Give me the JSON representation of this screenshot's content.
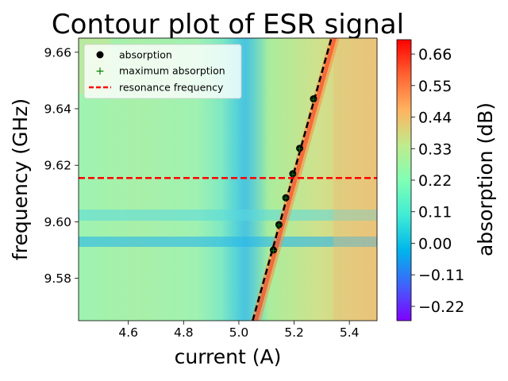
{
  "chart_data": {
    "type": "heatmap",
    "title": "Contour plot of ESR signal",
    "xlabel": "current (A)",
    "ylabel": "frequency (GHz)",
    "xlim": [
      4.42,
      5.5
    ],
    "ylim": [
      9.565,
      9.665
    ],
    "xticks": [
      "4.6",
      "4.8",
      "5.0",
      "5.2",
      "5.4"
    ],
    "yticks": [
      "9.58",
      "9.60",
      "9.62",
      "9.64",
      "9.66"
    ],
    "colorbar": {
      "label": "absorption (dB)",
      "range": [
        -0.27,
        0.71
      ],
      "ticks": [
        "−0.22",
        "−0.11",
        "0.00",
        "0.11",
        "0.22",
        "0.33",
        "0.44",
        "0.55",
        "0.66"
      ],
      "colormap": "rainbow"
    },
    "legend": {
      "placement": "top-left",
      "entries": [
        "absorption",
        "maximum absorption",
        "resonance frequency"
      ]
    },
    "series": [
      {
        "name": "absorption",
        "kind": "points",
        "color": "#000000",
        "points": [
          [
            5.125,
            9.59
          ],
          [
            5.145,
            9.599
          ],
          [
            5.17,
            9.6085
          ],
          [
            5.195,
            9.617
          ],
          [
            5.22,
            9.626
          ],
          [
            5.27,
            9.6435
          ]
        ]
      },
      {
        "name": "maximum absorption",
        "kind": "points",
        "color": "#008000",
        "points": [
          [
            5.125,
            9.59
          ],
          [
            5.145,
            9.599
          ],
          [
            5.17,
            9.6085
          ],
          [
            5.195,
            9.617
          ],
          [
            5.22,
            9.626
          ],
          [
            5.27,
            9.6435
          ]
        ]
      },
      {
        "name": "fit",
        "kind": "dashed-line",
        "color": "#000000",
        "points": [
          [
            5.05,
            9.565
          ],
          [
            5.335,
            9.665
          ]
        ]
      },
      {
        "name": "resonance frequency",
        "kind": "hline",
        "color": "#ff0000",
        "y": 9.6155
      }
    ]
  }
}
